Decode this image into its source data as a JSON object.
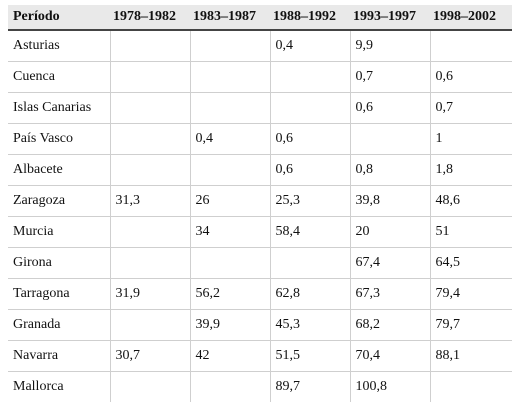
{
  "table": {
    "headers": [
      "Período",
      "1978–1982",
      "1983–1987",
      "1988–1992",
      "1993–1997",
      "1998–2002"
    ],
    "rows": [
      [
        "Asturias",
        "",
        "",
        "0,4",
        "9,9",
        ""
      ],
      [
        "Cuenca",
        "",
        "",
        "",
        "0,7",
        "0,6"
      ],
      [
        "Islas Canarias",
        "",
        "",
        "",
        "0,6",
        "0,7"
      ],
      [
        "País Vasco",
        "",
        "0,4",
        "0,6",
        "",
        "1"
      ],
      [
        "Albacete",
        "",
        "",
        "0,6",
        "0,8",
        "1,8"
      ],
      [
        "Zaragoza",
        "31,3",
        "26",
        "25,3",
        "39,8",
        "48,6"
      ],
      [
        "Murcia",
        "",
        "34",
        "58,4",
        "20",
        "51"
      ],
      [
        "Girona",
        "",
        "",
        "",
        "67,4",
        "64,5"
      ],
      [
        "Tarragona",
        "31,9",
        "56,2",
        "62,8",
        "67,3",
        "79,4"
      ],
      [
        "Granada",
        "",
        "39,9",
        "45,3",
        "68,2",
        "79,7"
      ],
      [
        "Navarra",
        "30,7",
        "42",
        "51,5",
        "70,4",
        "88,1"
      ],
      [
        "Mallorca",
        "",
        "",
        "89,7",
        "100,8",
        ""
      ]
    ]
  }
}
